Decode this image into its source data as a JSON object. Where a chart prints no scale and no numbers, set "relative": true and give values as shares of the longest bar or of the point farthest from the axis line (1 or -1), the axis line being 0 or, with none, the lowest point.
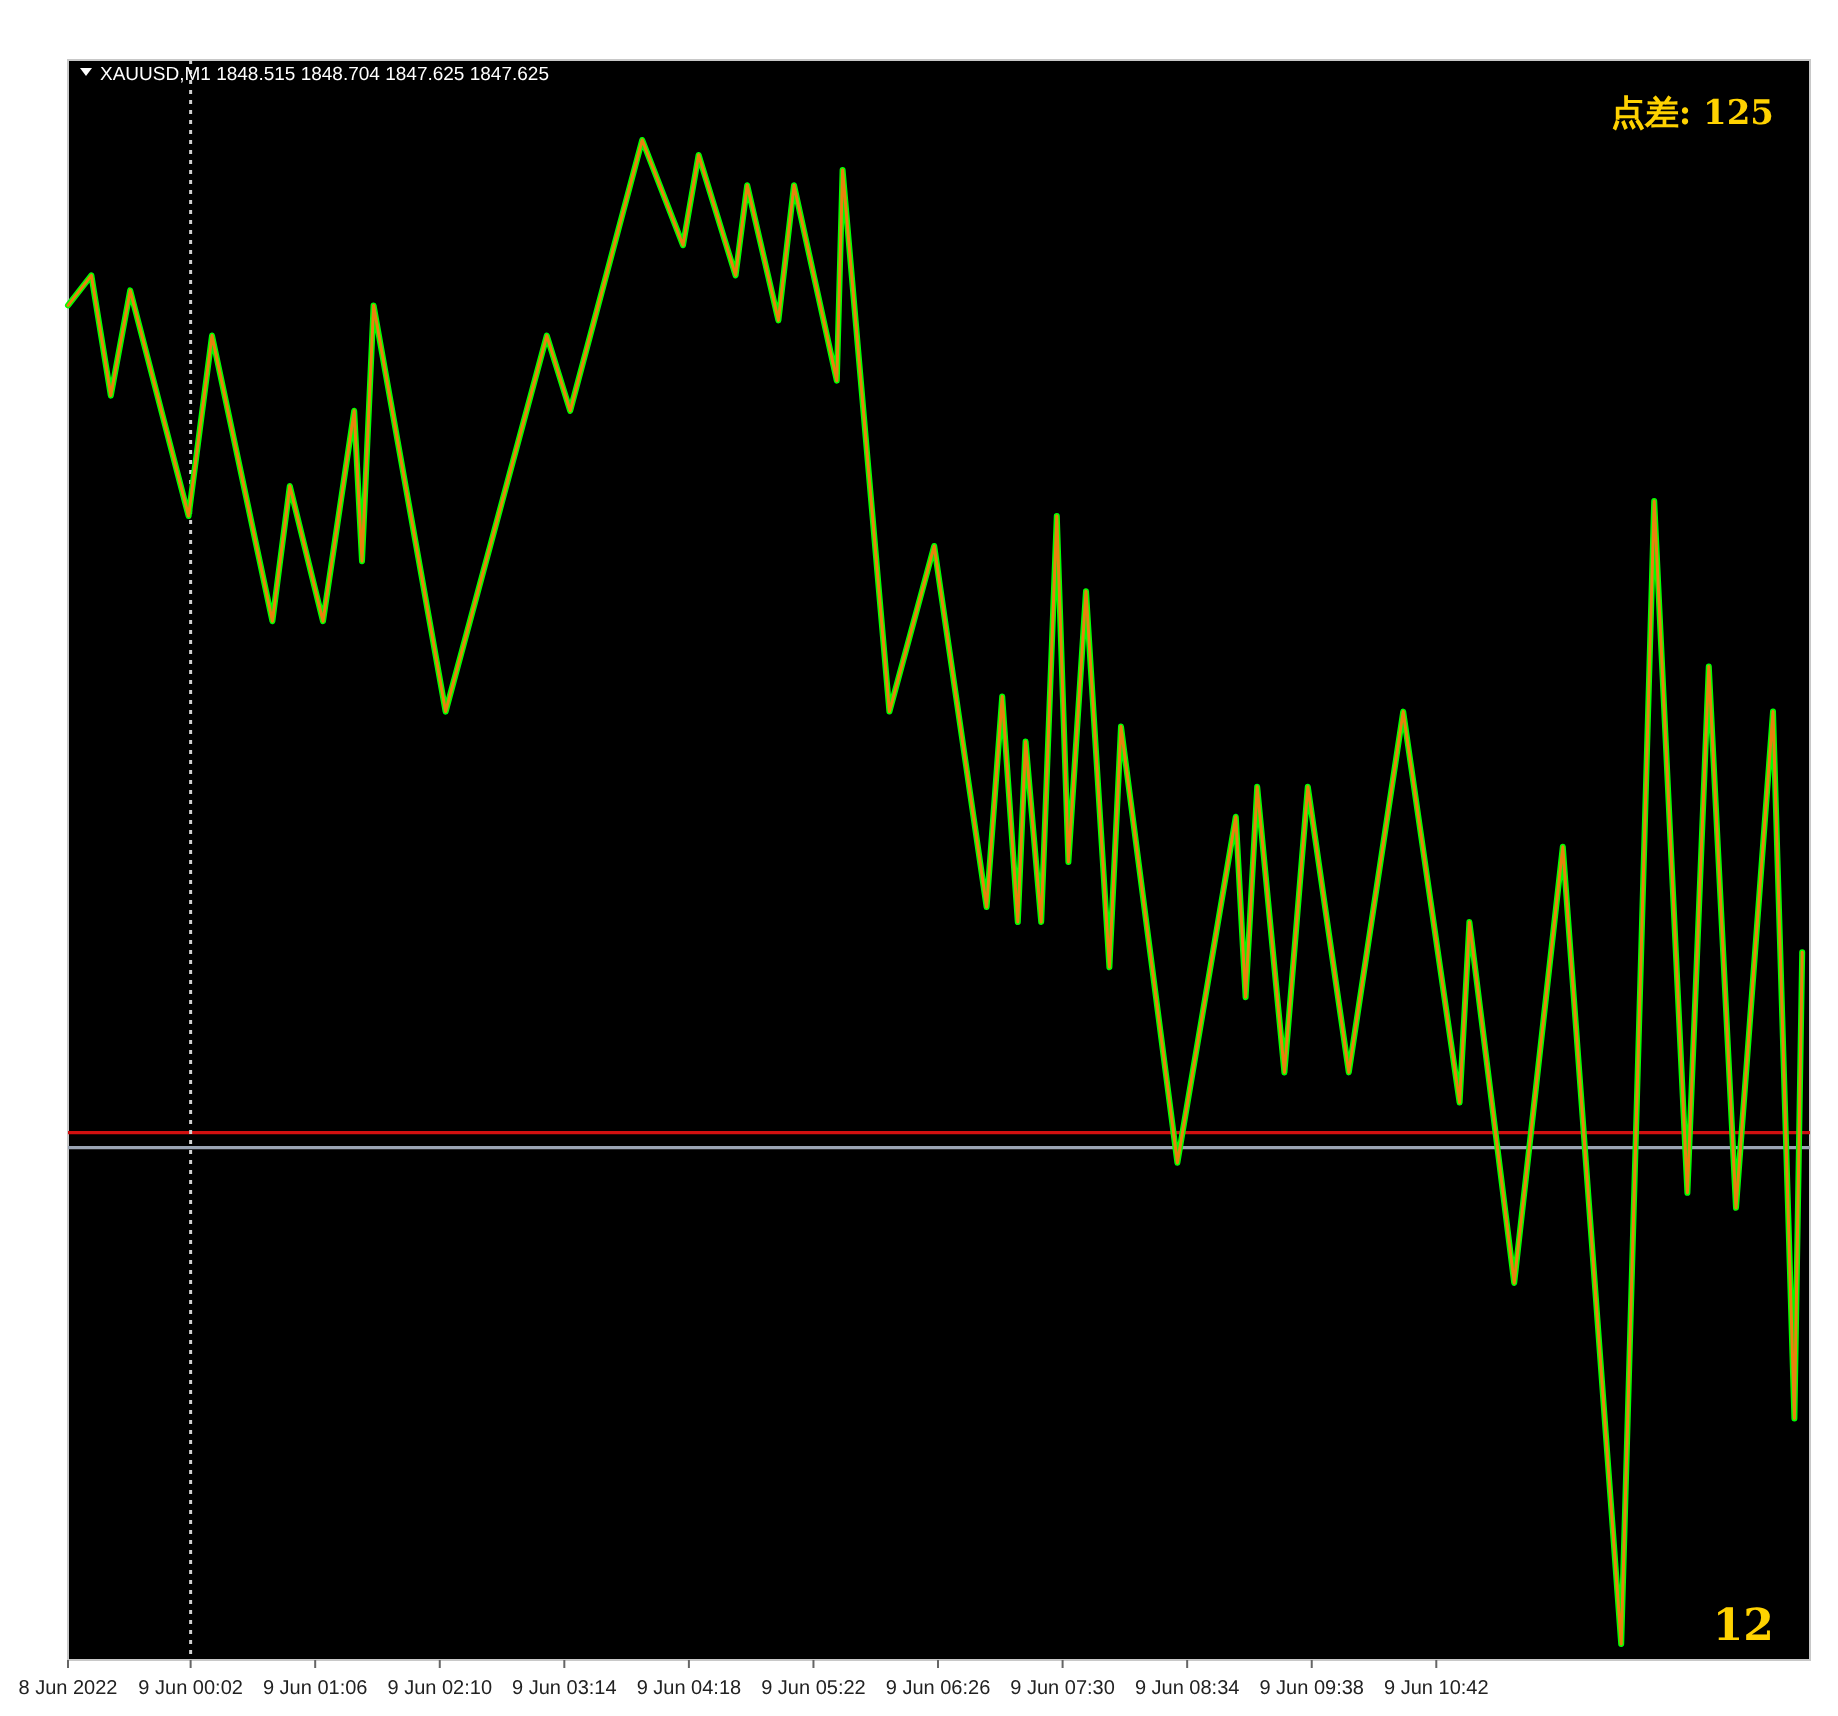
{
  "chart_data": {
    "type": "line",
    "title": "XAUUSD,M1  1848.515 1848.704 1847.625 1847.625",
    "relative": true,
    "grid": false,
    "marker": "none",
    "annotations": [
      "点差: 125",
      "12"
    ],
    "xlim": [
      "2022-06-08T22:59",
      "2022-06-09T13:54"
    ],
    "xticks": [
      {
        "value": "2022-06-08T22:59",
        "label": "8 Jun 2022"
      },
      {
        "value": "2022-06-09T00:02",
        "label": "9 Jun 00:02"
      },
      {
        "value": "2022-06-09T01:06",
        "label": "9 Jun 01:06"
      },
      {
        "value": "2022-06-09T02:10",
        "label": "9 Jun 02:10"
      },
      {
        "value": "2022-06-09T03:14",
        "label": "9 Jun 03:14"
      },
      {
        "value": "2022-06-09T04:18",
        "label": "9 Jun 04:18"
      },
      {
        "value": "2022-06-09T05:22",
        "label": "9 Jun 05:22"
      },
      {
        "value": "2022-06-09T06:26",
        "label": "9 Jun 06:26"
      },
      {
        "value": "2022-06-09T07:30",
        "label": "9 Jun 07:30"
      },
      {
        "value": "2022-06-09T08:34",
        "label": "9 Jun 08:34"
      },
      {
        "value": "2022-06-09T09:38",
        "label": "9 Jun 09:38"
      },
      {
        "value": "2022-06-09T10:42",
        "label": "9 Jun 10:42"
      }
    ],
    "x": [
      "2022-06-08T22:59",
      "2022-06-08T23:11",
      "2022-06-08T23:21",
      "2022-06-08T23:31",
      "2022-06-09T00:01",
      "2022-06-09T00:13",
      "2022-06-09T00:44",
      "2022-06-09T00:53",
      "2022-06-09T01:10",
      "2022-06-09T01:26",
      "2022-06-09T01:30",
      "2022-06-09T01:36",
      "2022-06-09T02:13",
      "2022-06-09T03:05",
      "2022-06-09T03:17",
      "2022-06-09T03:54",
      "2022-06-09T04:15",
      "2022-06-09T04:23",
      "2022-06-09T04:42",
      "2022-06-09T04:48",
      "2022-06-09T05:04",
      "2022-06-09T05:12",
      "2022-06-09T05:34",
      "2022-06-09T05:37",
      "2022-06-09T06:01",
      "2022-06-09T06:24",
      "2022-06-09T06:51",
      "2022-06-09T06:59",
      "2022-06-09T07:07",
      "2022-06-09T07:11",
      "2022-06-09T07:19",
      "2022-06-09T07:27",
      "2022-06-09T07:33",
      "2022-06-09T07:42",
      "2022-06-09T07:54",
      "2022-06-09T08:00",
      "2022-06-09T08:29",
      "2022-06-09T08:59",
      "2022-06-09T09:04",
      "2022-06-09T09:10",
      "2022-06-09T09:24",
      "2022-06-09T09:36",
      "2022-06-09T09:57",
      "2022-06-09T10:25",
      "2022-06-09T10:54",
      "2022-06-09T10:59",
      "2022-06-09T11:22",
      "2022-06-09T11:47",
      "2022-06-09T12:17",
      "2022-06-09T12:34",
      "2022-06-09T12:51",
      "2022-06-09T13:02",
      "2022-06-09T13:16",
      "2022-06-09T13:35",
      "2022-06-09T13:46",
      "2022-06-09T13:50"
    ],
    "series": [
      {
        "color": "#00ff00",
        "values": [
          0.89,
          0.91,
          0.83,
          0.9,
          0.75,
          0.87,
          0.68,
          0.77,
          0.68,
          0.82,
          0.72,
          0.89,
          0.62,
          0.87,
          0.82,
          1.0,
          0.93,
          0.99,
          0.91,
          0.97,
          0.88,
          0.97,
          0.84,
          0.98,
          0.62,
          0.73,
          0.49,
          0.63,
          0.48,
          0.6,
          0.48,
          0.75,
          0.52,
          0.7,
          0.45,
          0.61,
          0.32,
          0.55,
          0.43,
          0.57,
          0.38,
          0.57,
          0.38,
          0.62,
          0.36,
          0.48,
          0.24,
          0.53,
          0,
          0.76,
          0.3,
          0.65,
          0.29,
          0.62,
          0.15,
          0.46
        ]
      },
      {
        "color": "#e8820c",
        "values": [
          0.89,
          0.91,
          0.83,
          0.9,
          0.75,
          0.87,
          0.68,
          0.77,
          0.68,
          0.82,
          0.72,
          0.89,
          0.62,
          0.87,
          0.82,
          1.0,
          0.93,
          0.99,
          0.91,
          0.97,
          0.88,
          0.97,
          0.84,
          0.98,
          0.62,
          0.73,
          0.49,
          0.63,
          0.48,
          0.6,
          0.48,
          0.75,
          0.52,
          0.7,
          0.45,
          0.61,
          0.32,
          0.55,
          0.43,
          0.57,
          0.38,
          0.57,
          0.38,
          0.62,
          0.36,
          0.48,
          0.24,
          0.53,
          0,
          0.76,
          0.3,
          0.65,
          0.29,
          0.62,
          0.15,
          0.46
        ]
      }
    ],
    "ref_lines": [
      {
        "axis": "y",
        "value": 0.34,
        "color": "#d01010",
        "line_style": "solid"
      },
      {
        "axis": "y",
        "value": 0.33,
        "color": "#9aa4b4",
        "line_style": "solid"
      },
      {
        "axis": "x",
        "value": "2022-06-09T00:02",
        "color": "#d0d0d0",
        "line_style": "dotted"
      }
    ]
  }
}
